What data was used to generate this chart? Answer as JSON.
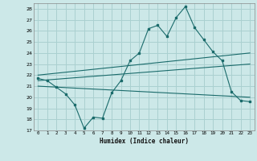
{
  "xlabel": "Humidex (Indice chaleur)",
  "background_color": "#cce8e8",
  "grid_color": "#aad0d0",
  "line_color": "#1a6b6b",
  "xlim": [
    -0.5,
    23.5
  ],
  "ylim": [
    17,
    28.5
  ],
  "yticks": [
    17,
    18,
    19,
    20,
    21,
    22,
    23,
    24,
    25,
    26,
    27,
    28
  ],
  "xticks": [
    0,
    1,
    2,
    3,
    4,
    5,
    6,
    7,
    8,
    9,
    10,
    11,
    12,
    13,
    14,
    15,
    16,
    17,
    18,
    19,
    20,
    21,
    22,
    23
  ],
  "series1_x": [
    0,
    1,
    2,
    3,
    4,
    5,
    6,
    7,
    8,
    9,
    10,
    11,
    12,
    13,
    14,
    15,
    16,
    17,
    18,
    19,
    20,
    21,
    22,
    23
  ],
  "series1_y": [
    21.7,
    21.5,
    20.9,
    20.3,
    19.3,
    17.2,
    18.2,
    18.1,
    20.4,
    21.5,
    23.3,
    24.0,
    26.2,
    26.5,
    25.5,
    27.2,
    28.2,
    26.3,
    25.2,
    24.1,
    23.3,
    20.5,
    19.7,
    19.6
  ],
  "series2_x": [
    0,
    23
  ],
  "series2_y": [
    22.0,
    24.0
  ],
  "series3_x": [
    0,
    23
  ],
  "series3_y": [
    21.5,
    23.0
  ],
  "series4_x": [
    0,
    23
  ],
  "series4_y": [
    21.0,
    20.0
  ]
}
